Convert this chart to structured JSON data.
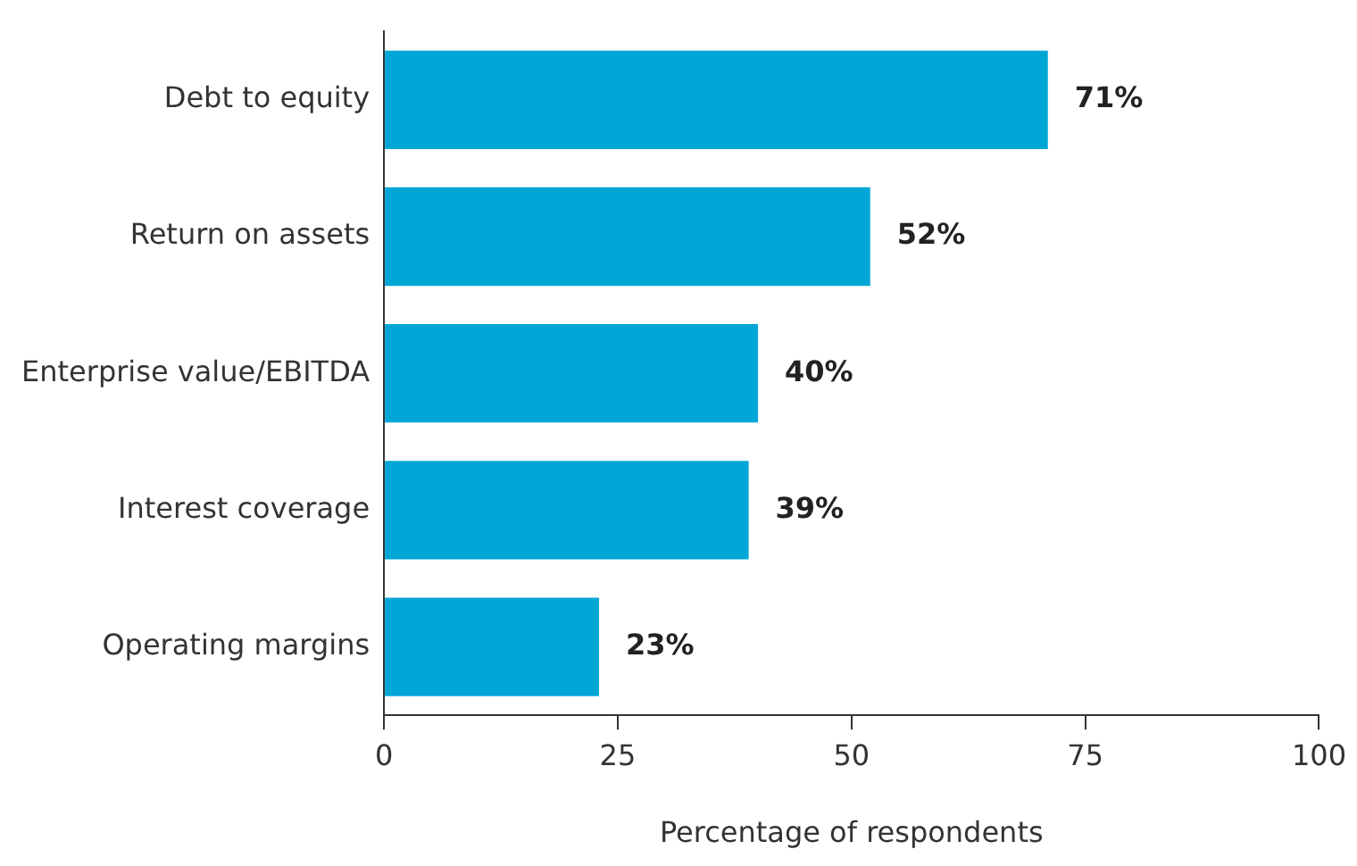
{
  "chart_data": {
    "type": "bar",
    "orientation": "horizontal",
    "xlabel": "Percentage of respondents",
    "categories": [
      "Debt to equity",
      "Return on assets",
      "Enterprise value/EBITDA",
      "Interest coverage",
      "Operating margins"
    ],
    "values": [
      71,
      52,
      40,
      39,
      23
    ],
    "color": "#00a6d6",
    "value_labels": [
      "71%",
      "52%",
      "40%",
      "39%",
      "23%"
    ],
    "xlim": [
      0,
      100
    ],
    "xticks": [
      0,
      25,
      50,
      75,
      100
    ],
    "grid": false,
    "legend": false
  }
}
